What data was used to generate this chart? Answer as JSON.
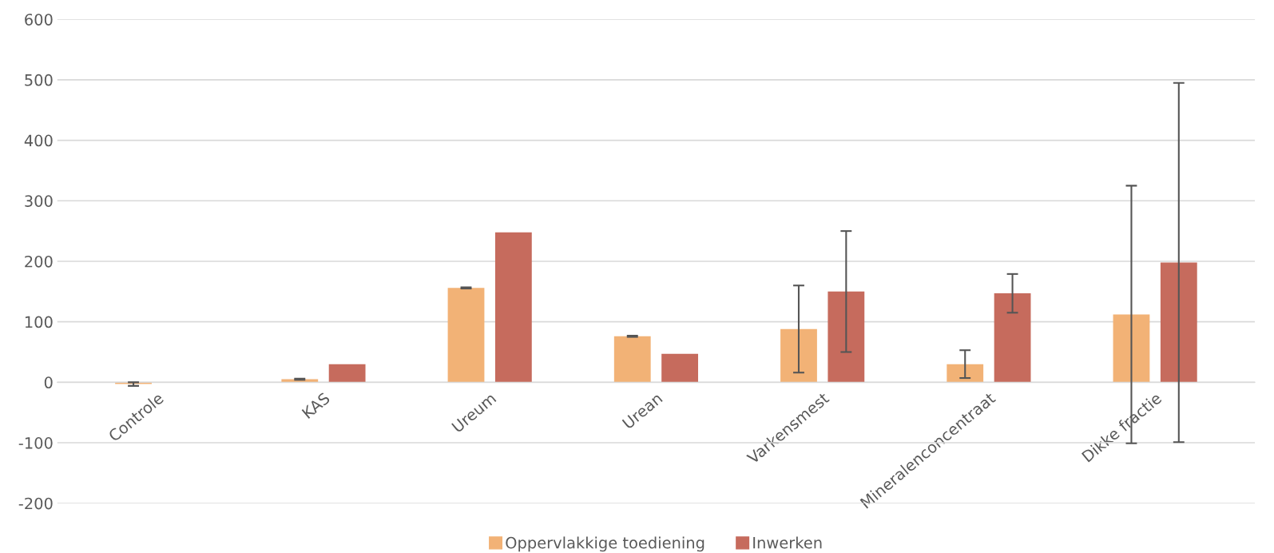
{
  "chart_data": {
    "type": "bar",
    "categories": [
      "Controle",
      "KAS",
      "Ureum",
      "Urean",
      "Varkensmest",
      "Mineralenconcentraat",
      "Dikke fractie"
    ],
    "series": [
      {
        "name": "Oppervlakkige toediening",
        "color": "#f2b276",
        "values": [
          -3,
          5,
          156,
          76,
          88,
          30,
          112
        ],
        "errors": [
          3,
          1,
          1,
          1,
          72,
          23,
          213
        ]
      },
      {
        "name": "Inwerken",
        "color": "#c66b5d",
        "values": [
          null,
          30,
          248,
          47,
          150,
          147,
          198
        ],
        "errors": [
          null,
          null,
          null,
          null,
          100,
          32,
          297
        ]
      }
    ],
    "ylim": [
      -200,
      600
    ],
    "yticks": [
      -200,
      -100,
      0,
      100,
      200,
      300,
      400,
      500,
      600
    ],
    "grid": "y",
    "legend": "bottom"
  }
}
